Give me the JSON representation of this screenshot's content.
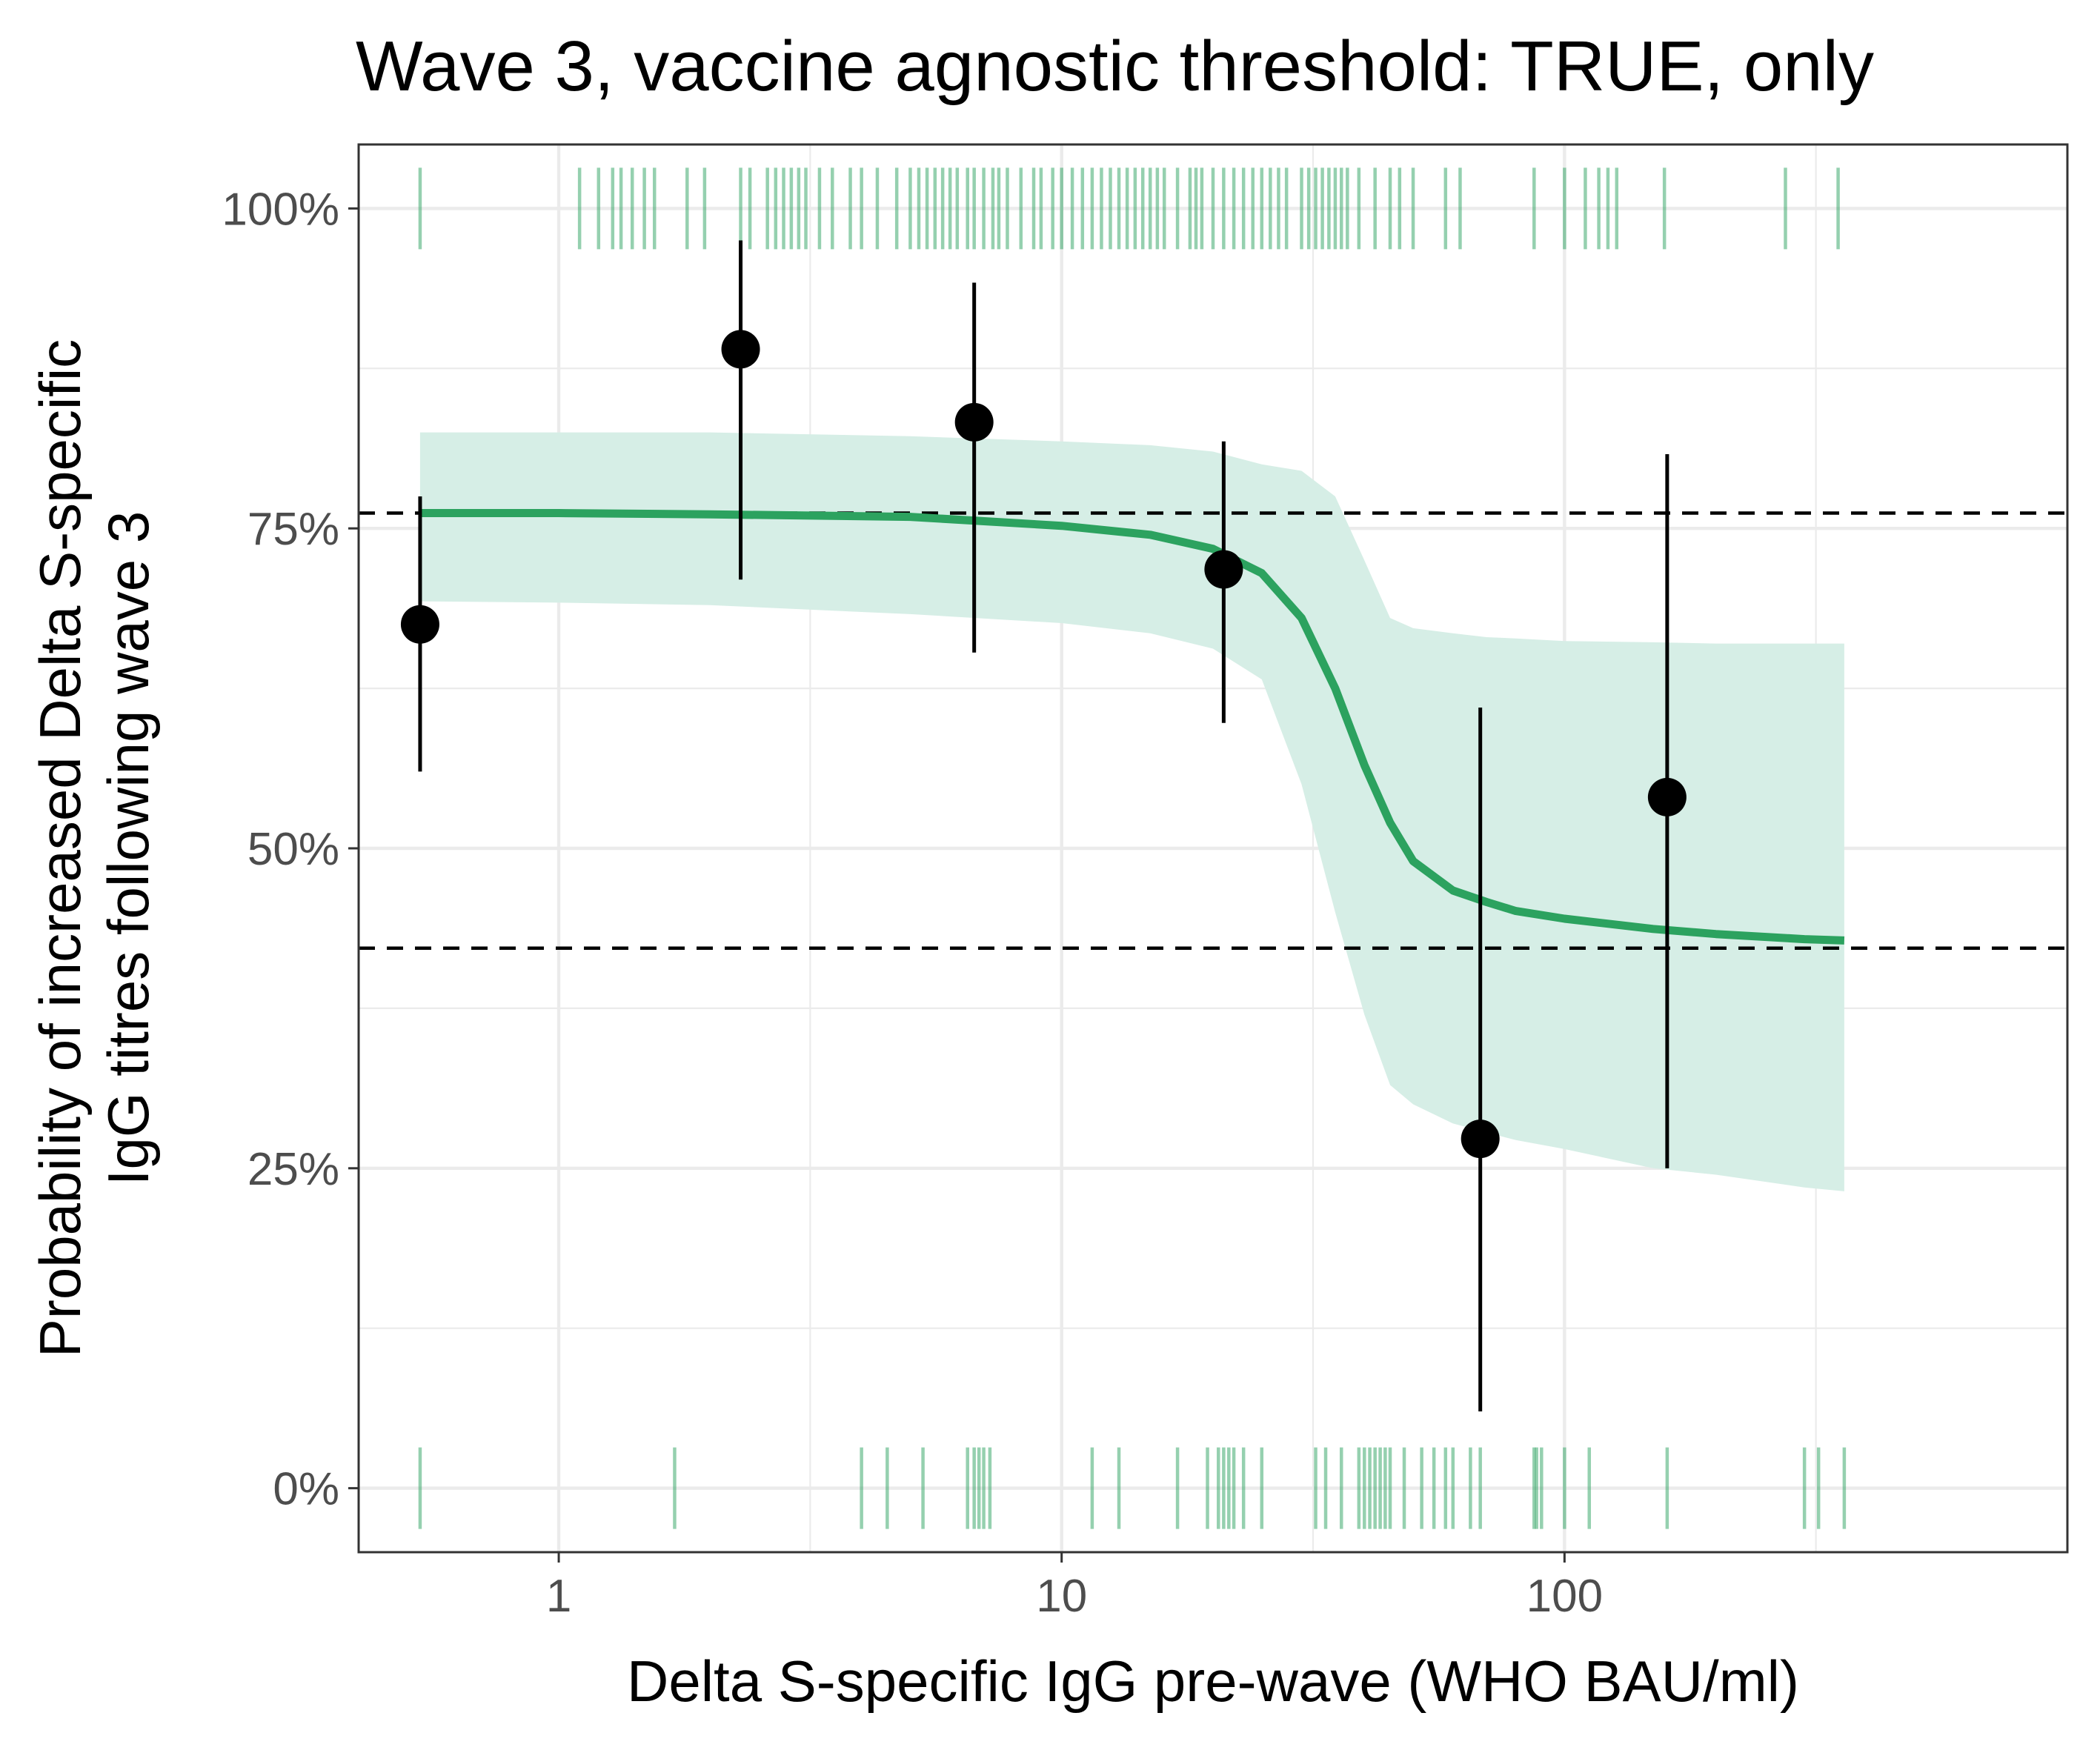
{
  "chart_data": {
    "type": "scatter",
    "title": "Wave 3, vaccine agnostic threshold: TRUE, only",
    "xlabel": "Delta S-specific IgG pre-wave (WHO BAU/ml)",
    "ylabel_lines": [
      "Probability of increased Delta S-specific",
      "IgG titres following wave 3"
    ],
    "x_scale": "log10",
    "xlim": [
      0.4,
      1000
    ],
    "ylim": [
      -0.05,
      1.05
    ],
    "x_ticks": [
      {
        "value": 1,
        "label": "1"
      },
      {
        "value": 10,
        "label": "10"
      },
      {
        "value": 100,
        "label": "100"
      }
    ],
    "y_ticks": [
      {
        "value": 0,
        "label": "0%"
      },
      {
        "value": 0.25,
        "label": "25%"
      },
      {
        "value": 0.5,
        "label": "50%"
      },
      {
        "value": 0.75,
        "label": "75%"
      },
      {
        "value": 1,
        "label": "100%"
      }
    ],
    "grid": true,
    "colors": {
      "curve": "#2ca25f",
      "ribbon": "#d6eee6",
      "rug": "#2ca25f",
      "points": "#000000",
      "hline": "#000000",
      "grid": "#ebebeb",
      "axis_text": "#4d4d4d"
    },
    "hlines": [
      0.762,
      0.422
    ],
    "binned_points": [
      {
        "x": 0.53,
        "y": 0.675,
        "lo": 0.56,
        "hi": 0.775
      },
      {
        "x": 2.3,
        "y": 0.89,
        "lo": 0.71,
        "hi": 0.975
      },
      {
        "x": 6.7,
        "y": 0.833,
        "lo": 0.653,
        "hi": 0.942
      },
      {
        "x": 21,
        "y": 0.718,
        "lo": 0.598,
        "hi": 0.818
      },
      {
        "x": 68,
        "y": 0.273,
        "lo": 0.06,
        "hi": 0.61
      },
      {
        "x": 160,
        "y": 0.54,
        "lo": 0.25,
        "hi": 0.808
      }
    ],
    "fitted_curve": {
      "x": [
        0.53,
        1,
        2,
        5,
        10,
        15,
        20,
        25,
        30,
        35,
        40,
        45,
        50,
        60,
        70,
        80,
        100,
        150,
        200,
        300,
        360
      ],
      "y": [
        0.762,
        0.762,
        0.761,
        0.759,
        0.752,
        0.745,
        0.734,
        0.715,
        0.68,
        0.625,
        0.565,
        0.52,
        0.49,
        0.467,
        0.458,
        0.451,
        0.445,
        0.437,
        0.433,
        0.429,
        0.428
      ],
      "lower": [
        0.693,
        0.692,
        0.69,
        0.683,
        0.676,
        0.668,
        0.656,
        0.632,
        0.55,
        0.45,
        0.37,
        0.315,
        0.3,
        0.285,
        0.278,
        0.272,
        0.265,
        0.25,
        0.245,
        0.235,
        0.232
      ],
      "upper": [
        0.825,
        0.825,
        0.825,
        0.822,
        0.818,
        0.815,
        0.81,
        0.8,
        0.795,
        0.775,
        0.725,
        0.68,
        0.672,
        0.668,
        0.665,
        0.664,
        0.662,
        0.661,
        0.66,
        0.66,
        0.66
      ]
    },
    "rug_top_x": [
      0.53,
      1.1,
      1.2,
      1.28,
      1.33,
      1.4,
      1.48,
      1.55,
      1.8,
      1.95,
      2.3,
      2.4,
      2.6,
      2.7,
      2.8,
      2.9,
      3.0,
      3.1,
      3.3,
      3.5,
      3.8,
      4.0,
      4.3,
      4.7,
      5.0,
      5.2,
      5.4,
      5.6,
      5.8,
      6.0,
      6.2,
      6.5,
      6.7,
      7.0,
      7.3,
      7.5,
      7.8,
      8.3,
      8.8,
      9.1,
      9.6,
      10.0,
      10.5,
      11,
      11.5,
      12,
      12.5,
      13,
      13.5,
      14,
      14.5,
      15,
      15.5,
      16,
      17,
      18,
      18.5,
      19,
      20,
      21,
      22,
      23,
      24,
      25,
      26,
      27,
      28,
      30,
      31,
      32,
      33,
      34,
      35,
      36,
      37,
      39,
      42,
      45,
      47,
      50,
      58,
      62,
      87,
      100,
      110,
      117,
      122,
      127,
      158,
      275,
      350
    ]
  },
  "rug_bottom_x": [
    0.53,
    1.7,
    4.0,
    4.5,
    5.3,
    6.5,
    6.7,
    6.85,
    7.0,
    7.2,
    11.5,
    13,
    17,
    19.5,
    20.5,
    21,
    21.5,
    22,
    23,
    25,
    32,
    33.5,
    36,
    39,
    40,
    41,
    42,
    43,
    44,
    45,
    48,
    52,
    55,
    58,
    60,
    65,
    68,
    87,
    88,
    90,
    100,
    112,
    160,
    300,
    320,
    360
  ]
}
